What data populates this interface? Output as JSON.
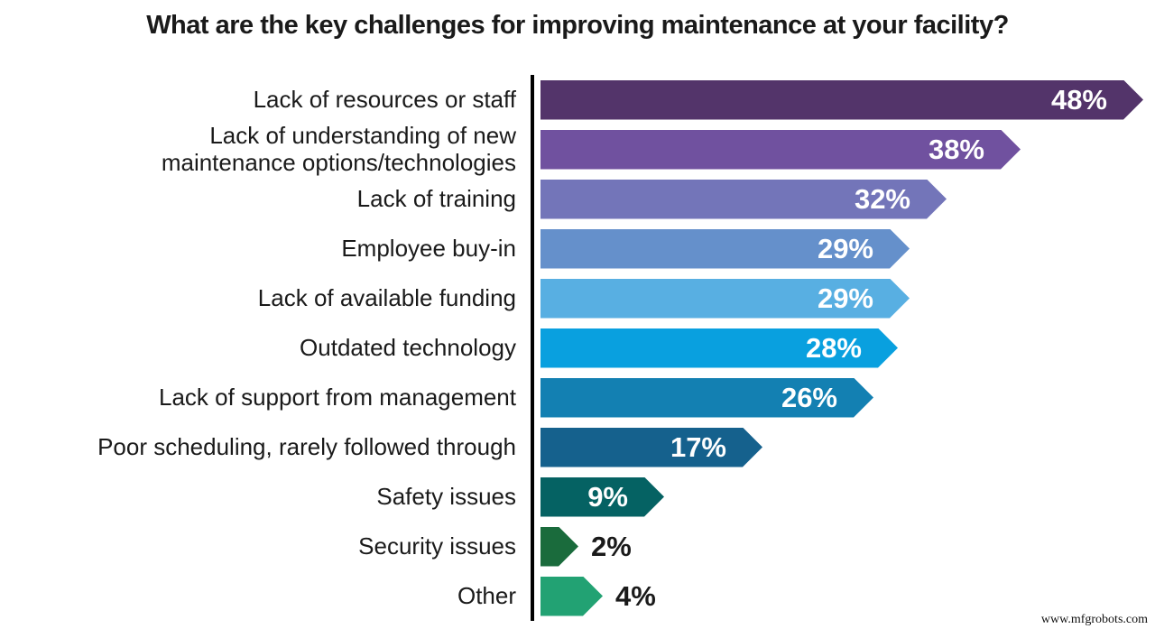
{
  "title": "What are the key challenges for improving maintenance at your facility?",
  "watermark": "www.mfgrobots.com",
  "chart_data": {
    "type": "bar",
    "orientation": "horizontal",
    "title": "What are the key challenges for improving maintenance at your facility?",
    "categories": [
      "Lack of resources or staff",
      "Lack of understanding of new\nmaintenance options/technologies",
      "Lack of training",
      "Employee buy-in",
      "Lack of available funding",
      "Outdated technology",
      "Lack of support from management",
      "Poor scheduling, rarely followed through",
      "Safety issues",
      "Security issues",
      "Other"
    ],
    "values": [
      48,
      38,
      32,
      29,
      29,
      28,
      26,
      17,
      9,
      2,
      4
    ],
    "value_suffix": "%",
    "bar_colors": [
      "#53346A",
      "#70519F",
      "#7375B9",
      "#6590CB",
      "#58AFE2",
      "#09A0DF",
      "#1380B2",
      "#15618D",
      "#056263",
      "#1A6B3C",
      "#22A273"
    ],
    "bar_shape": "right-arrow",
    "value_label_inside_color": "#ffffff",
    "value_label_outside_color": "#1a1a1a",
    "outside_label_threshold": 5,
    "axis_color": "#000000",
    "xlim": [
      0,
      50
    ],
    "grid": false,
    "legend": false
  }
}
